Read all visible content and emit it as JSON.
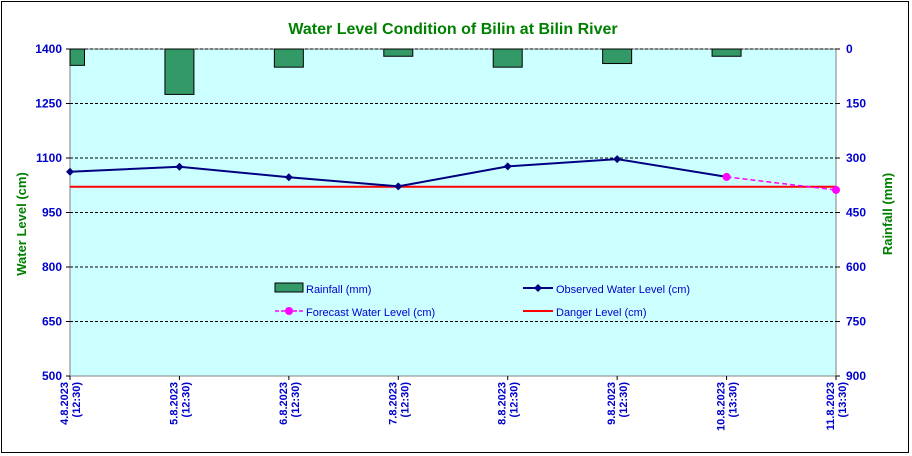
{
  "chart_data": {
    "type": "bar+line",
    "title": "Water Level Condition of Bilin at Bilin River",
    "ylabel_left": "Water Level (cm)",
    "ylabel_right": "Rainfall (mm)",
    "ylim_left": [
      500,
      1400
    ],
    "yticks_left": [
      500,
      650,
      800,
      950,
      1100,
      1250,
      1400
    ],
    "ylim_right_inverted": [
      0,
      900
    ],
    "yticks_right": [
      0,
      150,
      300,
      450,
      600,
      750,
      900
    ],
    "categories": [
      [
        "4.8.2023",
        "(12:30)"
      ],
      [
        "5.8.2023",
        "(12:30)"
      ],
      [
        "6.8.2023",
        "(12:30)"
      ],
      [
        "7.8.2023",
        "(12:30)"
      ],
      [
        "8.8.2023",
        "(12:30)"
      ],
      [
        "9.8.2023",
        "(12:30)"
      ],
      [
        "10.8.2023",
        "(13:30)"
      ],
      [
        "11.8.2023",
        "(13:30)"
      ]
    ],
    "series": [
      {
        "name": "Rainfall (mm)",
        "kind": "bar",
        "axis": "right",
        "color": "#339966",
        "values": [
          45,
          125,
          50,
          20,
          50,
          40,
          20,
          null
        ]
      },
      {
        "name": "Observed Water Level (cm)",
        "kind": "line",
        "axis": "left",
        "color": "#000080",
        "values": [
          1062,
          1076,
          1047,
          1022,
          1077,
          1097,
          1048,
          null
        ]
      },
      {
        "name": "Forecast Water Level (cm)",
        "kind": "dashed-line",
        "axis": "left",
        "color": "#FF00FF",
        "values": [
          null,
          null,
          null,
          null,
          null,
          null,
          1048,
          1012
        ]
      },
      {
        "name": "Danger Level (cm)",
        "kind": "line",
        "axis": "left",
        "color": "#FF0000",
        "values": [
          1021,
          1021,
          1021,
          1021,
          1021,
          1021,
          1021,
          1021
        ]
      }
    ],
    "grid": true,
    "legend_placement": "center",
    "colors": {
      "plot_background": "#CCFFFF",
      "title": "#008000",
      "ticks": "#0000CC",
      "axis_titles": "#008000"
    }
  }
}
